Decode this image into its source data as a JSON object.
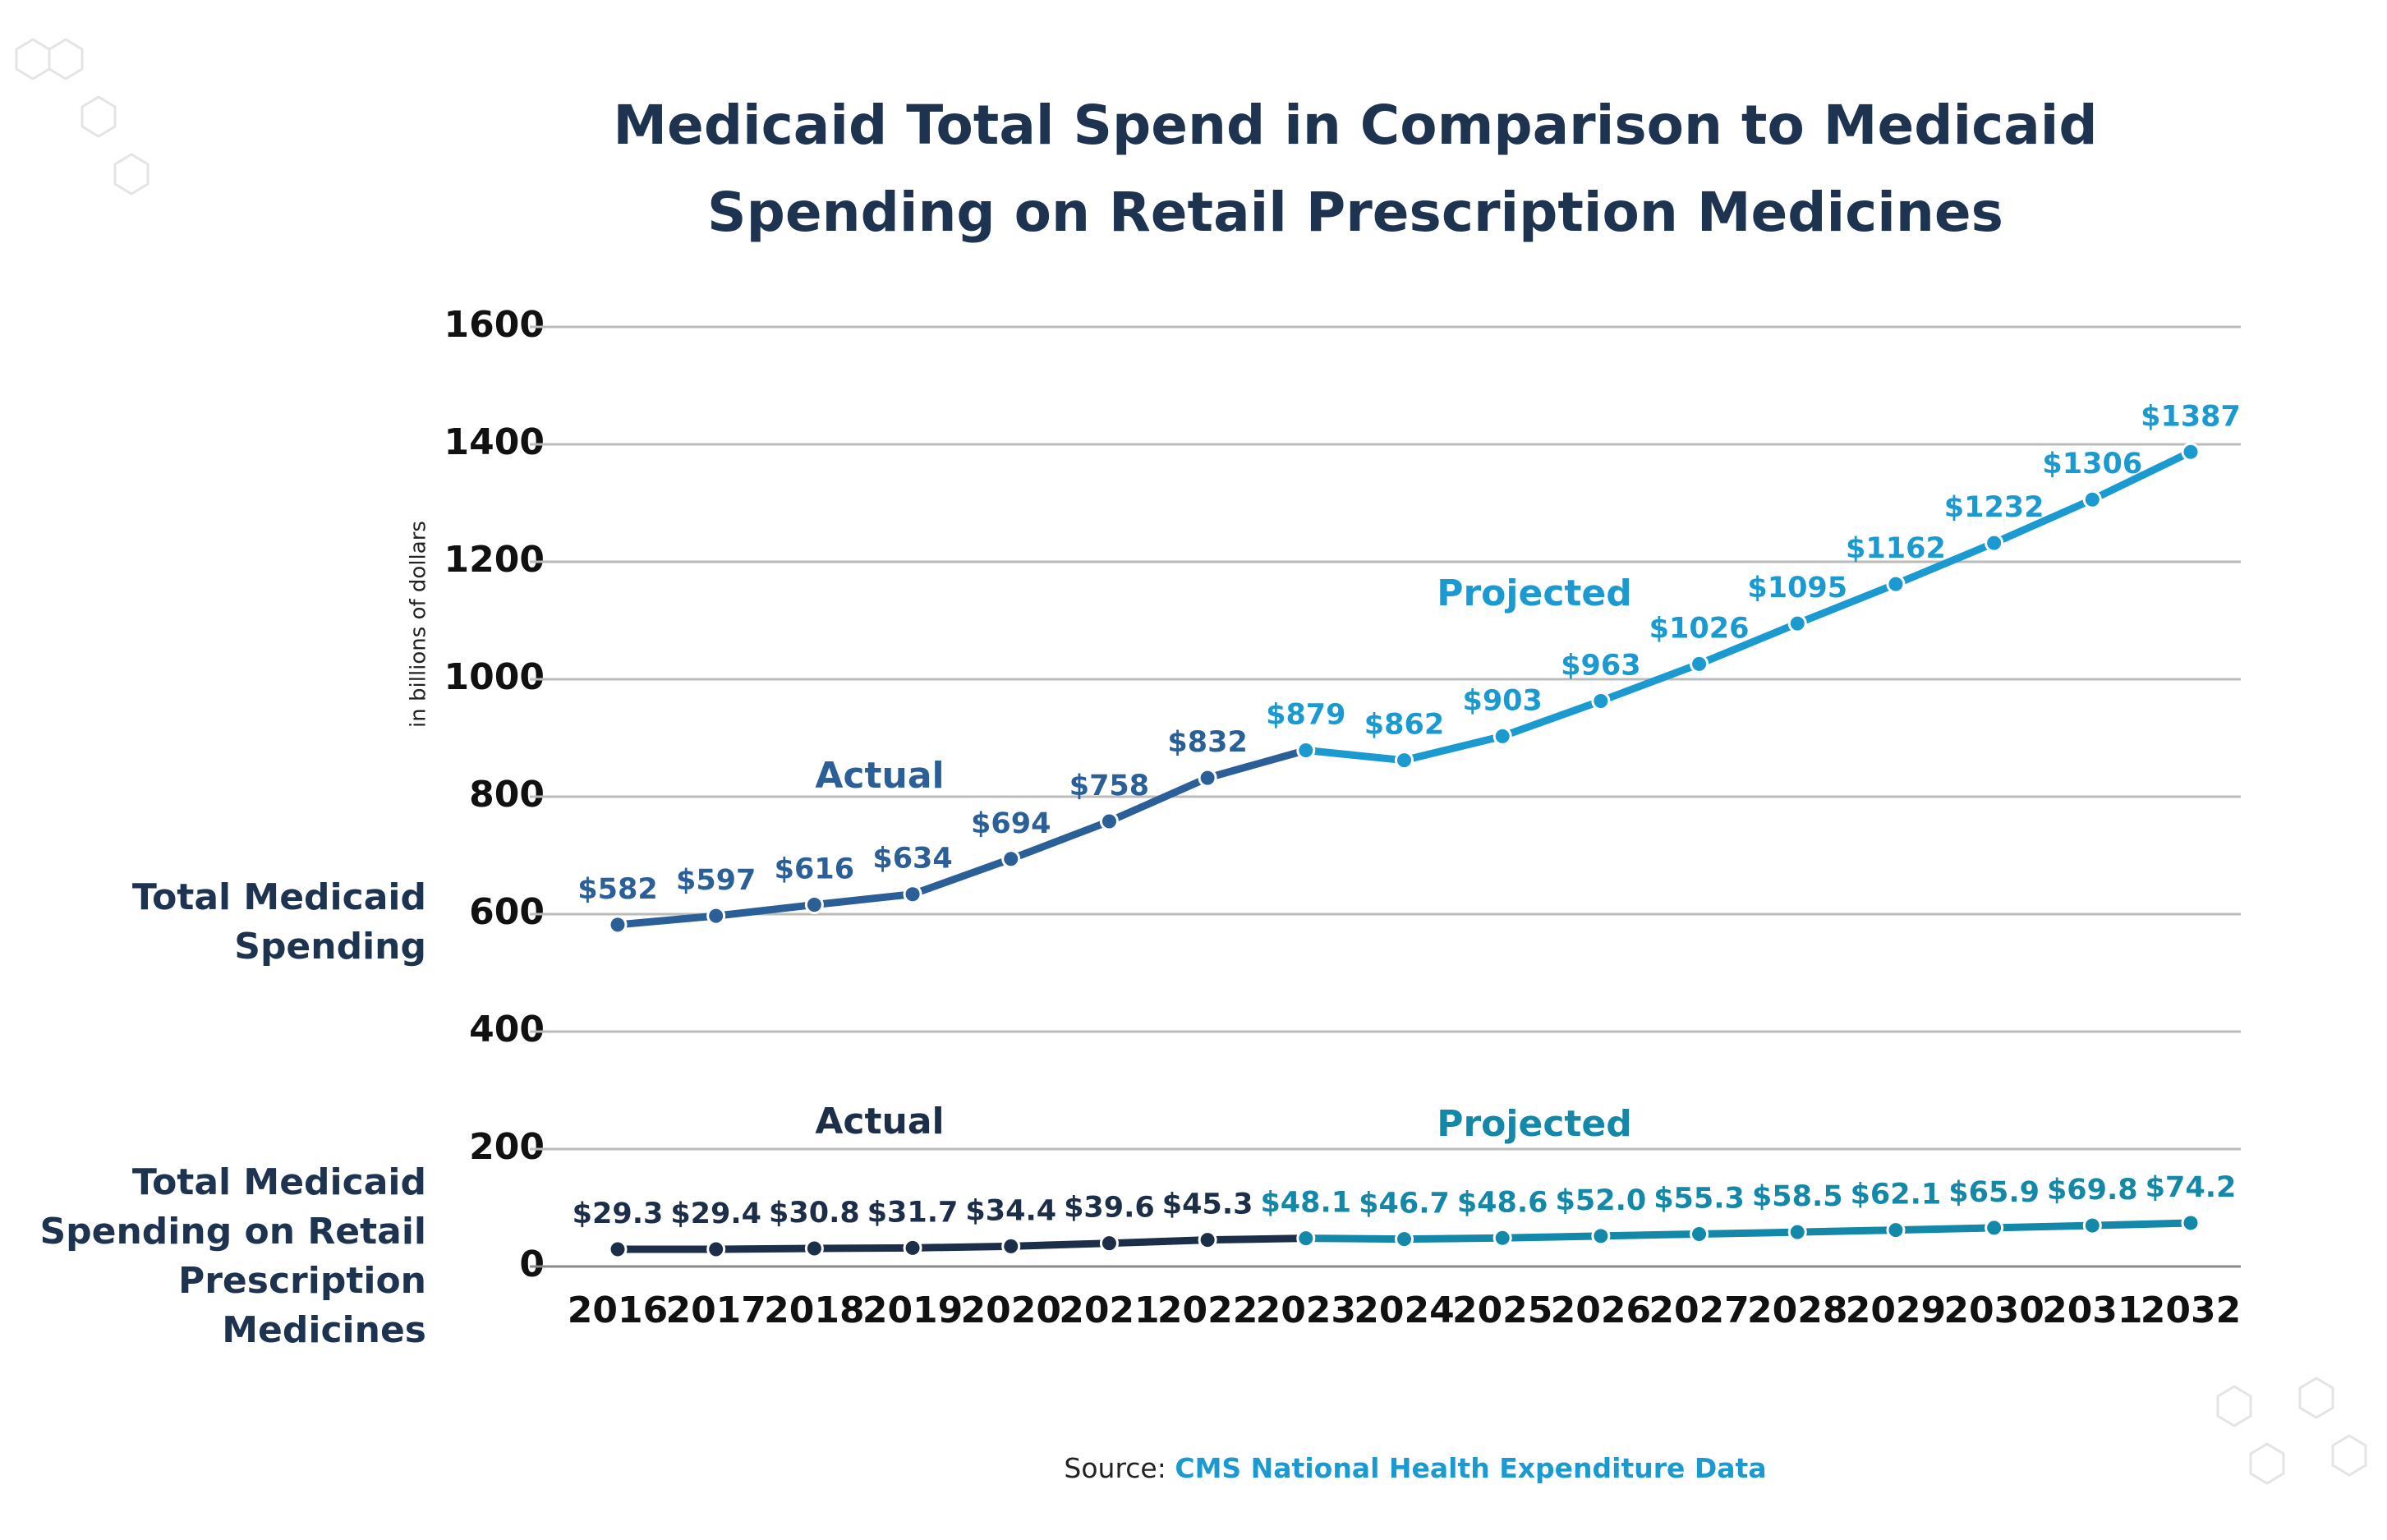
{
  "chart_data": {
    "type": "line",
    "title": "Medicaid Total Spend in Comparison to Medicaid Spending on Retail Prescription Medicines",
    "y_label": "in billions of dollars",
    "categories": [
      "2016",
      "2017",
      "2018",
      "2019",
      "2020",
      "2021",
      "2022",
      "2023",
      "2024",
      "2025",
      "2026",
      "2027",
      "2028",
      "2029",
      "2030",
      "2031",
      "2032"
    ],
    "series": [
      {
        "name": "Total Medicaid Spending",
        "values": [
          582,
          597,
          616,
          634,
          694,
          758,
          832,
          879,
          862,
          903,
          963,
          1026,
          1095,
          1162,
          1232,
          1306,
          1387
        ],
        "value_labels": [
          "$582",
          "$597",
          "$616",
          "$634",
          "$694",
          "$758",
          "$832",
          "$879",
          "$862",
          "$903",
          "$963",
          "$1026",
          "$1095",
          "$1162",
          "$1232",
          "$1306",
          "$1387"
        ],
        "colors": [
          "#2a5f97",
          "#2a5f97",
          "#2a5f97",
          "#2a5f97",
          "#2a5f97",
          "#2a5f97",
          "#2a5f97",
          "#1a9ad0",
          "#1a9ad0",
          "#1a9ad0",
          "#1a9ad0",
          "#1a9ad0",
          "#1a9ad0",
          "#1a9ad0",
          "#1a9ad0",
          "#1a9ad0",
          "#1a9ad0"
        ],
        "annotations": [
          "Actual",
          "Projected"
        ]
      },
      {
        "name": "Total Medicaid Spending on Retail Prescription Medicines",
        "values": [
          29.3,
          29.4,
          30.8,
          31.7,
          34.4,
          39.6,
          45.3,
          48.1,
          46.7,
          48.6,
          52.0,
          55.3,
          58.5,
          62.1,
          65.9,
          69.8,
          74.2
        ],
        "value_labels": [
          "$29.3",
          "$29.4",
          "$30.8",
          "$31.7",
          "$34.4",
          "$39.6",
          "$45.3",
          "$48.1",
          "$46.7",
          "$48.6",
          "$52.0",
          "$55.3",
          "$58.5",
          "$62.1",
          "$65.9",
          "$69.8",
          "$74.2"
        ],
        "colors": [
          "#1c2e48",
          "#1c2e48",
          "#1c2e48",
          "#1c2e48",
          "#1c2e48",
          "#1c2e48",
          "#1c2e48",
          "#1488a8",
          "#1488a8",
          "#1488a8",
          "#1488a8",
          "#1488a8",
          "#1488a8",
          "#1488a8",
          "#1488a8",
          "#1488a8",
          "#1488a8"
        ],
        "annotations": [
          "Actual",
          "Projected"
        ]
      }
    ],
    "ylim": [
      0,
      1600
    ],
    "yticks": [
      0,
      200,
      400,
      600,
      800,
      1000,
      1200,
      1400,
      1600
    ],
    "grid": true,
    "source": {
      "prefix": "Source:",
      "text": "CMS National Health Expenditure Data"
    }
  }
}
